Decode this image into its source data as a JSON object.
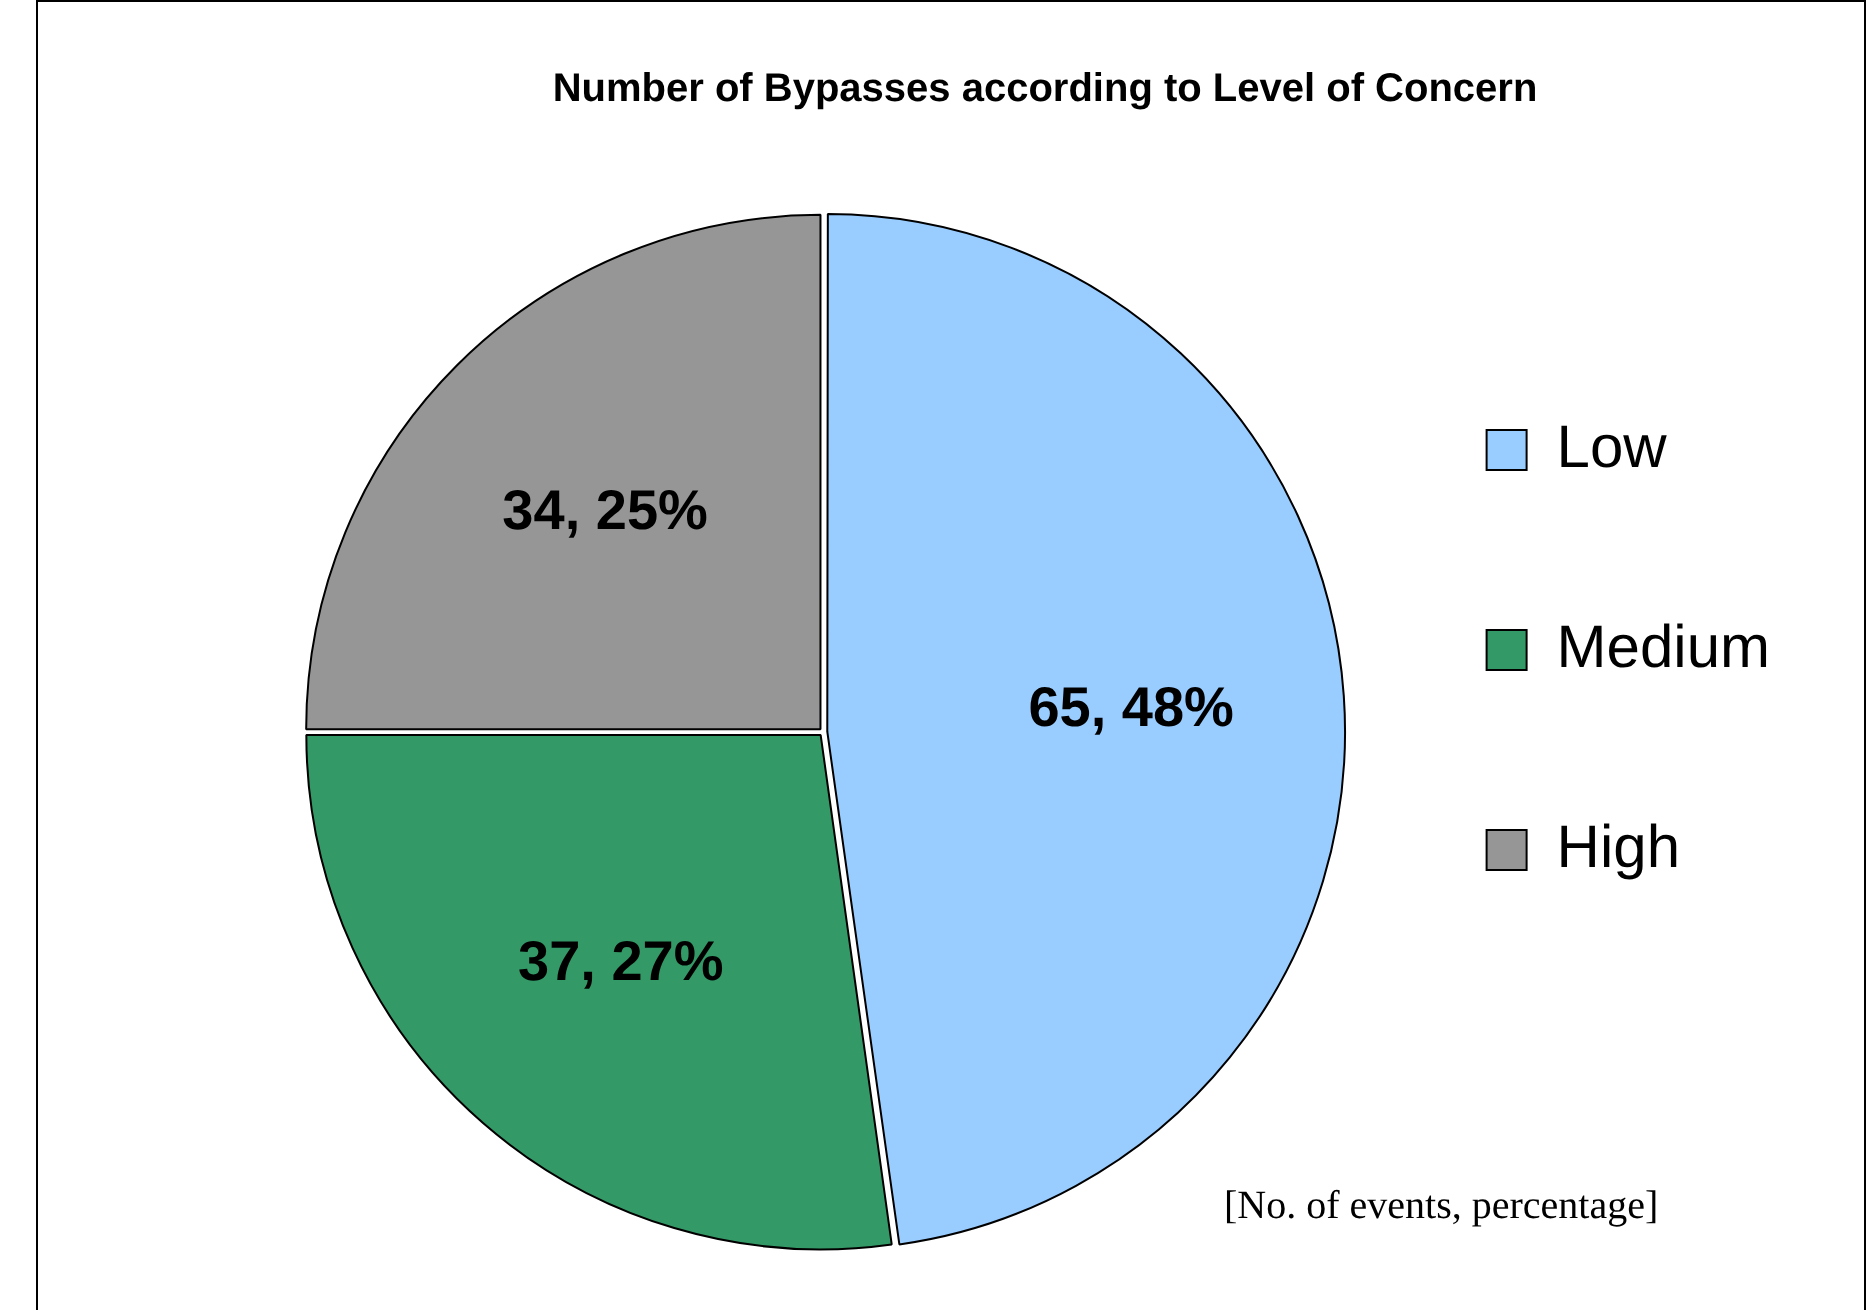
{
  "chart_data": {
    "type": "pie",
    "title": "Number of Bypasses according to Level of Concern",
    "categories": [
      "Low",
      "Medium",
      "High"
    ],
    "values": [
      65,
      37,
      34
    ],
    "colors": [
      "#99ccff",
      "#339966",
      "#969696"
    ],
    "value_labels": [
      "65, 48%",
      "37, 27%",
      "34, 25%"
    ],
    "legend": "right",
    "annotations": [
      "[No. of events, percentage]"
    ]
  }
}
